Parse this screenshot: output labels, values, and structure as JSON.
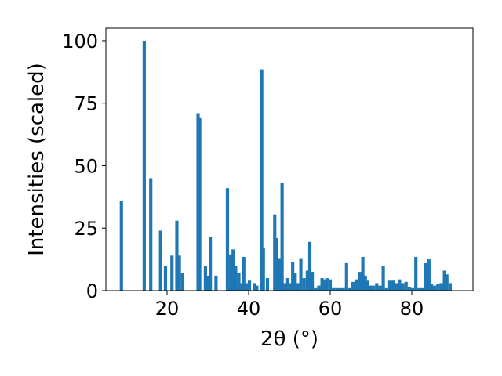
{
  "chart_data": {
    "type": "bar",
    "xlabel": "2θ (°)",
    "ylabel": "Intensities (scaled)",
    "xlim": [
      5,
      95
    ],
    "ylim": [
      0,
      105
    ],
    "x_ticks": [
      20,
      40,
      60,
      80
    ],
    "y_ticks": [
      0,
      25,
      50,
      75,
      100
    ],
    "grid": false,
    "bar_color": "#1f77b4",
    "bar_width": 0.8,
    "x": [
      8.8,
      14.4,
      16.0,
      18.4,
      19.6,
      21.2,
      22.4,
      23.0,
      23.8,
      27.6,
      28.0,
      29.4,
      29.8,
      30.6,
      32.0,
      34.8,
      35.6,
      36.2,
      36.8,
      37.6,
      38.2,
      38.8,
      39.4,
      40.2,
      41.4,
      42.0,
      43.2,
      43.6,
      44.6,
      46.4,
      46.8,
      47.6,
      48.2,
      48.8,
      49.4,
      50.2,
      50.8,
      51.4,
      52.0,
      52.8,
      53.6,
      54.4,
      55.0,
      55.6,
      56.4,
      57.2,
      58.0,
      58.6,
      59.2,
      60.0,
      60.8,
      61.6,
      62.4,
      63.2,
      64.0,
      64.8,
      65.6,
      66.4,
      67.2,
      68.0,
      68.6,
      69.2,
      69.8,
      70.6,
      71.4,
      72.2,
      73.0,
      73.8,
      74.6,
      75.4,
      76.2,
      77.0,
      77.8,
      78.6,
      79.4,
      80.2,
      81.0,
      81.8,
      82.6,
      83.4,
      84.2,
      84.8,
      85.6,
      86.4,
      87.2,
      88.0,
      88.6,
      89.4
    ],
    "values": [
      36,
      100,
      45,
      24,
      10,
      14,
      28,
      14,
      7,
      71,
      69,
      10,
      6,
      21.5,
      6,
      41,
      14.5,
      16.5,
      10,
      7,
      3,
      13.5,
      3,
      4,
      3,
      2,
      88.5,
      17,
      5,
      30.5,
      21,
      13,
      43,
      3,
      5,
      3,
      11.5,
      7,
      3,
      13,
      5,
      8,
      19.5,
      7.5,
      1,
      2,
      5,
      4.5,
      5,
      4.5,
      1,
      1,
      1,
      1,
      11,
      1,
      3.5,
      4.5,
      7.5,
      13.5,
      6,
      4,
      2,
      2,
      3,
      2,
      10,
      1,
      4,
      4,
      3,
      4.5,
      3,
      3.5,
      1.5,
      1,
      13.5,
      1,
      1,
      11,
      12.5,
      2.5,
      2,
      2.5,
      3,
      8,
      6.5,
      3
    ]
  }
}
